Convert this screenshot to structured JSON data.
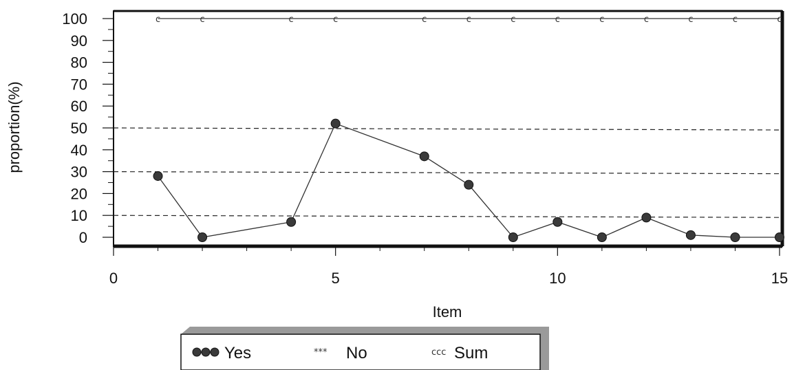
{
  "chart_data": {
    "type": "line",
    "xlabel": "Item",
    "ylabel": "proportion(%)",
    "xlim": [
      0,
      15
    ],
    "ylim": [
      0,
      100
    ],
    "x_ticks": [
      "0",
      "5",
      "10",
      "15"
    ],
    "y_ticks": [
      "0",
      "10",
      "20",
      "30",
      "40",
      "50",
      "60",
      "70",
      "80",
      "90",
      "100"
    ],
    "reference_lines": [
      10,
      30,
      50
    ],
    "legend_placement": "bottom",
    "series": [
      {
        "name": "Yes",
        "marker": "filled-circle",
        "color": "#333333",
        "x": [
          1,
          2,
          4,
          5,
          7,
          8,
          9,
          10,
          11,
          12,
          13,
          14,
          15
        ],
        "values": [
          28,
          0,
          7,
          52,
          37,
          24,
          0,
          7,
          0,
          9,
          1,
          0,
          0
        ]
      },
      {
        "name": "No",
        "marker": "star",
        "color": "#333333",
        "x": [],
        "values": []
      },
      {
        "name": "Sum",
        "marker": "ccc",
        "color": "#333333",
        "x": [
          1,
          2,
          4,
          5,
          7,
          8,
          9,
          10,
          11,
          12,
          13,
          14,
          15
        ],
        "values": [
          100,
          100,
          100,
          100,
          100,
          100,
          100,
          100,
          100,
          100,
          100,
          100,
          100
        ]
      }
    ]
  },
  "legend": {
    "items": [
      {
        "label": "Yes",
        "symbol": "●●●"
      },
      {
        "label": "No",
        "symbol": "***"
      },
      {
        "label": "Sum",
        "symbol": "ccc"
      }
    ]
  }
}
